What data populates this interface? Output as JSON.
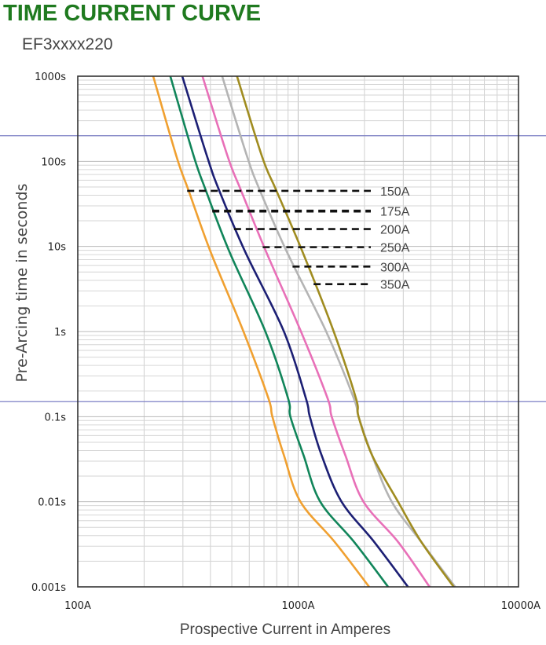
{
  "header": {
    "title": "TIME CURRENT CURVE",
    "subtitle": "EF3xxxx220"
  },
  "chart_data": {
    "type": "line",
    "title": "TIME CURRENT CURVE",
    "subtitle": "EF3xxxx220",
    "xlabel": "Prospective Current in Amperes",
    "ylabel": "Pre-Arcing time in seconds",
    "xscale": "log",
    "yscale": "log",
    "xlim": [
      100,
      10000
    ],
    "ylim": [
      0.001,
      1000
    ],
    "grid": true,
    "x_ticks": [
      {
        "value": 100,
        "label": "100A"
      },
      {
        "value": 1000,
        "label": "1000A"
      },
      {
        "value": 10000,
        "label": "10000A"
      }
    ],
    "y_ticks": [
      {
        "value": 1000,
        "label": "1000s"
      },
      {
        "value": 100,
        "label": "100s"
      },
      {
        "value": 10,
        "label": "10s"
      },
      {
        "value": 1,
        "label": "1s"
      },
      {
        "value": 0.1,
        "label": "0.1s"
      },
      {
        "value": 0.01,
        "label": "0.01s"
      },
      {
        "value": 0.001,
        "label": "0.001s"
      }
    ],
    "reference_lines_t": [
      200,
      0.15
    ],
    "series": [
      {
        "name": "150A",
        "color": "#f0a030",
        "label_t": 45,
        "points": [
          [
            220,
            1000
          ],
          [
            281,
            112
          ],
          [
            318,
            45.8
          ],
          [
            400,
            8.73
          ],
          [
            565,
            1
          ],
          [
            733,
            0.164
          ],
          [
            764,
            0.1
          ],
          [
            863,
            0.0347
          ],
          [
            1025,
            0.01
          ],
          [
            1470,
            0.00334
          ],
          [
            2100,
            0.001
          ]
        ]
      },
      {
        "name": "175A",
        "color": "#11855a",
        "label_t": 26,
        "points": [
          [
            263,
            1000
          ],
          [
            337,
            112
          ],
          [
            381,
            45.8
          ],
          [
            487,
            8.73
          ],
          [
            710,
            1
          ],
          [
            900,
            0.164
          ],
          [
            922,
            0.1
          ],
          [
            1060,
            0.0347
          ],
          [
            1260,
            0.01
          ],
          [
            1800,
            0.00334
          ],
          [
            2560,
            0.001
          ]
        ]
      },
      {
        "name": "200A",
        "color": "#1c1f74",
        "label_t": 16,
        "points": [
          [
            298,
            1000
          ],
          [
            387,
            112
          ],
          [
            438,
            45.8
          ],
          [
            574,
            8.73
          ],
          [
            862,
            1
          ],
          [
            1085,
            0.164
          ],
          [
            1130,
            0.1
          ],
          [
            1280,
            0.0347
          ],
          [
            1575,
            0.01
          ],
          [
            2220,
            0.00334
          ],
          [
            3150,
            0.001
          ]
        ]
      },
      {
        "name": "250A",
        "color": "#e870b8",
        "label_t": 9.8,
        "points": [
          [
            368,
            1000
          ],
          [
            480,
            112
          ],
          [
            550,
            45.8
          ],
          [
            715,
            8.73
          ],
          [
            1030,
            1
          ],
          [
            1360,
            0.164
          ],
          [
            1420,
            0.1
          ],
          [
            1640,
            0.0347
          ],
          [
            1980,
            0.01
          ],
          [
            2850,
            0.00334
          ],
          [
            3950,
            0.001
          ]
        ]
      },
      {
        "name": "300A",
        "color": "#b4b4b4",
        "label_t": 5.8,
        "points": [
          [
            452,
            1000
          ],
          [
            588,
            112
          ],
          [
            670,
            45.8
          ],
          [
            887,
            8.73
          ],
          [
            1340,
            1
          ],
          [
            1790,
            0.164
          ],
          [
            1880,
            0.1
          ],
          [
            2170,
            0.0347
          ],
          [
            2660,
            0.01
          ],
          [
            3630,
            0.00334
          ],
          [
            5160,
            0.001
          ]
        ]
      },
      {
        "name": "350A",
        "color": "#a08c20",
        "label_t": 3.6,
        "points": [
          [
            528,
            1000
          ],
          [
            687,
            112
          ],
          [
            795,
            45.8
          ],
          [
            1045,
            8.73
          ],
          [
            1450,
            1
          ],
          [
            1830,
            0.164
          ],
          [
            1880,
            0.1
          ],
          [
            2170,
            0.0347
          ],
          [
            2840,
            0.01
          ],
          [
            3630,
            0.00334
          ],
          [
            5080,
            0.001
          ]
        ]
      }
    ],
    "leader_labels": [
      {
        "label": "150A",
        "t": 45
      },
      {
        "label": "175A",
        "t": 26
      },
      {
        "label": "200A",
        "t": 16
      },
      {
        "label": "250A",
        "t": 9.8
      },
      {
        "label": "300A",
        "t": 5.8
      },
      {
        "label": "350A",
        "t": 3.6
      }
    ]
  }
}
